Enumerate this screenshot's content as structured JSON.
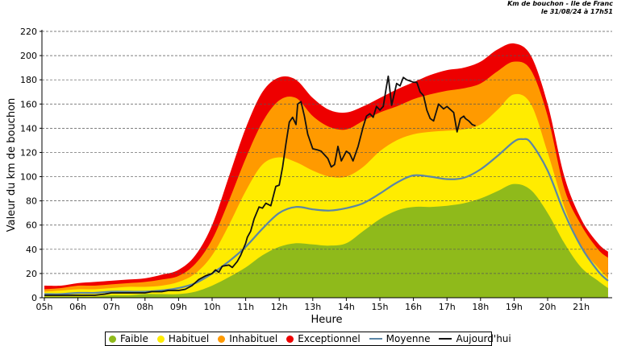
{
  "header": {
    "line1": "Km de bouchon - Ile de Franc",
    "line2": "le 31/08/24 à 17h51"
  },
  "chart_data": {
    "type": "area",
    "xlabel": "Heure",
    "ylabel": "Valeur du  km de bouchon",
    "ylim": [
      0,
      220
    ],
    "y_ticks": [
      0,
      20,
      40,
      60,
      80,
      100,
      120,
      140,
      160,
      180,
      200,
      220
    ],
    "y_tick_labels": [
      "0",
      "20",
      "40",
      "60",
      "80",
      "100",
      "120",
      "140",
      "160",
      "180",
      "200",
      "220"
    ],
    "xlim": [
      5,
      21.9
    ],
    "x_ticks": [
      5,
      6,
      7,
      8,
      9,
      10,
      11,
      12,
      13,
      14,
      15,
      16,
      17,
      18,
      19,
      20,
      21
    ],
    "x_tick_labels": [
      "05h",
      "06h",
      "07h",
      "08h",
      "09h",
      "10h",
      "11h",
      "12h",
      "13h",
      "14h",
      "15h",
      "16h",
      "17h",
      "18h",
      "19h",
      "20h",
      "21h"
    ],
    "grid": true,
    "legend_position": "bottom",
    "colors": {
      "faible": "#8fba1b",
      "habituel": "#ffec00",
      "inhabituel": "#ff9a00",
      "exceptionnel": "#ee0000",
      "moyenne": "#5b86a6",
      "aujourdhui": "#111111"
    },
    "legend": [
      {
        "key": "faible",
        "label": "Faible",
        "kind": "dot"
      },
      {
        "key": "habituel",
        "label": "Habituel",
        "kind": "dot"
      },
      {
        "key": "inhabituel",
        "label": "Inhabituel",
        "kind": "dot"
      },
      {
        "key": "exceptionnel",
        "label": "Exceptionnel",
        "kind": "dot"
      },
      {
        "key": "moyenne",
        "label": "Moyenne",
        "kind": "line"
      },
      {
        "key": "aujourdhui",
        "label": "Aujourd'hui",
        "kind": "line"
      }
    ],
    "band_x": [
      5,
      5.5,
      6,
      6.5,
      7,
      7.5,
      8,
      8.5,
      9,
      9.5,
      10,
      10.5,
      11,
      11.5,
      12,
      12.5,
      13,
      13.5,
      14,
      14.5,
      15,
      15.5,
      16,
      16.5,
      17,
      17.5,
      18,
      18.5,
      19,
      19.5,
      20,
      20.5,
      21,
      21.5,
      21.8
    ],
    "series": [
      {
        "name": "Exceptionnel",
        "key": "exceptionnel",
        "values": [
          10,
          10,
          12,
          13,
          14,
          15,
          16,
          19,
          23,
          35,
          60,
          100,
          140,
          170,
          182,
          180,
          165,
          155,
          153,
          158,
          165,
          172,
          178,
          184,
          188,
          190,
          195,
          205,
          210,
          200,
          160,
          100,
          65,
          45,
          38
        ]
      },
      {
        "name": "Inhabituel",
        "key": "inhabituel",
        "values": [
          7,
          8,
          10,
          10,
          11,
          12,
          13,
          15,
          18,
          28,
          48,
          80,
          115,
          145,
          163,
          165,
          150,
          141,
          139,
          146,
          153,
          158,
          164,
          168,
          171,
          173,
          177,
          187,
          195,
          188,
          150,
          90,
          60,
          40,
          33
        ]
      },
      {
        "name": "Habituel",
        "key": "habituel",
        "values": [
          5,
          6,
          7,
          7,
          8,
          9,
          9,
          10,
          13,
          20,
          35,
          60,
          88,
          110,
          116,
          112,
          105,
          100,
          100,
          108,
          121,
          130,
          135,
          137,
          138,
          139,
          143,
          155,
          168,
          160,
          120,
          75,
          42,
          25,
          16
        ]
      },
      {
        "name": "Faible",
        "key": "faible",
        "values": [
          1,
          1,
          1,
          1,
          2,
          2,
          3,
          3,
          3,
          5,
          10,
          17,
          25,
          35,
          42,
          45,
          44,
          43,
          45,
          55,
          65,
          72,
          75,
          75,
          76,
          78,
          82,
          88,
          94,
          89,
          70,
          45,
          25,
          14,
          8
        ]
      },
      {
        "name": "Moyenne",
        "key": "moyenne",
        "x": [
          5,
          5.5,
          6,
          6.5,
          7,
          7.5,
          8,
          8.5,
          9,
          9.5,
          10,
          10.5,
          11,
          11.5,
          12,
          12.5,
          13,
          13.5,
          14,
          14.5,
          15,
          15.5,
          16,
          16.5,
          17,
          17.5,
          18,
          18.5,
          19,
          19.25,
          19.5,
          20,
          20.5,
          21,
          21.5,
          21.8
        ],
        "values": [
          3,
          3,
          4,
          4,
          5,
          5,
          5,
          6,
          8,
          12,
          20,
          30,
          42,
          57,
          70,
          75,
          73,
          72,
          74,
          78,
          86,
          95,
          101,
          100,
          98,
          99,
          106,
          117,
          129,
          131,
          128,
          105,
          70,
          42,
          22,
          14
        ]
      },
      {
        "name": "Aujourd'hui",
        "key": "aujourdhui",
        "x": [
          5,
          5.5,
          6,
          6.5,
          6.8,
          7,
          7.5,
          8,
          8.2,
          8.5,
          8.7,
          9,
          9.2,
          9.4,
          9.6,
          9.8,
          10,
          10.1,
          10.2,
          10.3,
          10.5,
          10.6,
          10.75,
          10.85,
          11,
          11.05,
          11.15,
          11.25,
          11.4,
          11.5,
          11.6,
          11.75,
          11.9,
          12.0,
          12.1,
          12.2,
          12.3,
          12.4,
          12.5,
          12.55,
          12.65,
          12.75,
          12.85,
          13.0,
          13.15,
          13.25,
          13.35,
          13.45,
          13.55,
          13.65,
          13.75,
          13.85,
          14.0,
          14.1,
          14.2,
          14.35,
          14.5,
          14.6,
          14.7,
          14.8,
          14.9,
          15.0,
          15.1,
          15.2,
          15.25,
          15.35,
          15.5,
          15.6,
          15.7,
          15.8,
          15.9,
          16.0,
          16.1,
          16.2,
          16.3,
          16.4,
          16.5,
          16.6,
          16.75,
          16.9,
          17.0,
          17.2,
          17.3,
          17.4,
          17.5,
          17.55,
          17.65,
          17.75,
          17.85
        ],
        "values": [
          2,
          2,
          2,
          2,
          3,
          4,
          4,
          4,
          5,
          5,
          6,
          6,
          7,
          10,
          15,
          18,
          20,
          23,
          21,
          26,
          27,
          25,
          30,
          35,
          45,
          50,
          55,
          65,
          75,
          74,
          78,
          76,
          92,
          93,
          108,
          127,
          145,
          149,
          143,
          160,
          162,
          150,
          135,
          123,
          122,
          121,
          118,
          115,
          108,
          110,
          125,
          113,
          121,
          119,
          113,
          125,
          141,
          150,
          152,
          149,
          158,
          155,
          158,
          175,
          183,
          159,
          177,
          175,
          182,
          180,
          179,
          178,
          178,
          170,
          167,
          155,
          148,
          146,
          160,
          156,
          158,
          153,
          137,
          148,
          150,
          148,
          146,
          143,
          142
        ]
      }
    ]
  }
}
